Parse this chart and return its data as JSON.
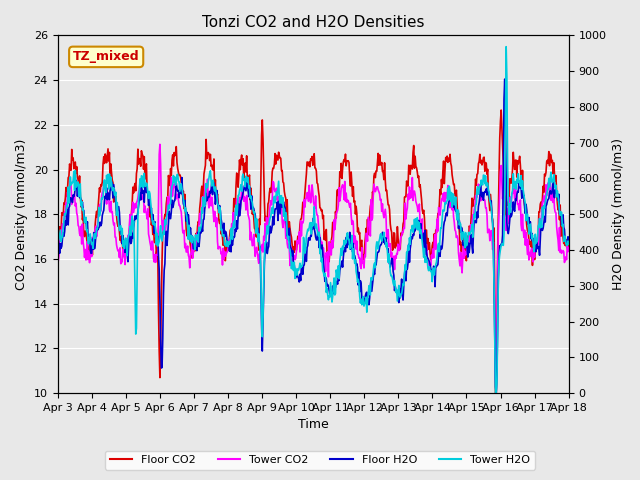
{
  "title": "Tonzi CO2 and H2O Densities",
  "xlabel": "Time",
  "ylabel_left": "CO2 Density (mmol/m3)",
  "ylabel_right": "H2O Density (mmol/m3)",
  "annotation_text": "TZ_mixed",
  "annotation_color": "#cc0000",
  "annotation_bg": "#ffffcc",
  "annotation_border": "#cc8800",
  "ylim_left": [
    10,
    26
  ],
  "ylim_right": [
    0,
    1000
  ],
  "yticks_left": [
    10,
    12,
    14,
    16,
    18,
    20,
    22,
    24,
    26
  ],
  "yticks_right": [
    0,
    100,
    200,
    300,
    400,
    500,
    600,
    700,
    800,
    900,
    1000
  ],
  "plot_bg": "#e8e8e8",
  "grid_color": "white",
  "colors": {
    "floor_co2": "#dd0000",
    "tower_co2": "#ff00ff",
    "floor_h2o": "#0000cc",
    "tower_h2o": "#00ccdd"
  },
  "linewidths": {
    "floor_co2": 1.2,
    "tower_co2": 1.2,
    "floor_h2o": 1.2,
    "tower_h2o": 1.2
  },
  "legend_labels": [
    "Floor CO2",
    "Tower CO2",
    "Floor H2O",
    "Tower H2O"
  ],
  "n_days": 15,
  "points_per_day": 48,
  "x_tick_positions": [
    0,
    1,
    2,
    3,
    4,
    5,
    6,
    7,
    8,
    9,
    10,
    11,
    12,
    13,
    14,
    15
  ],
  "x_tick_labels": [
    "Apr 3",
    "Apr 4",
    "Apr 5",
    "Apr 6",
    "Apr 7",
    "Apr 8",
    "Apr 9",
    "Apr 10",
    "Apr 11",
    "Apr 12",
    "Apr 13",
    "Apr 14",
    "Apr 15",
    "Apr 16",
    "Apr 17",
    "Apr 18"
  ]
}
